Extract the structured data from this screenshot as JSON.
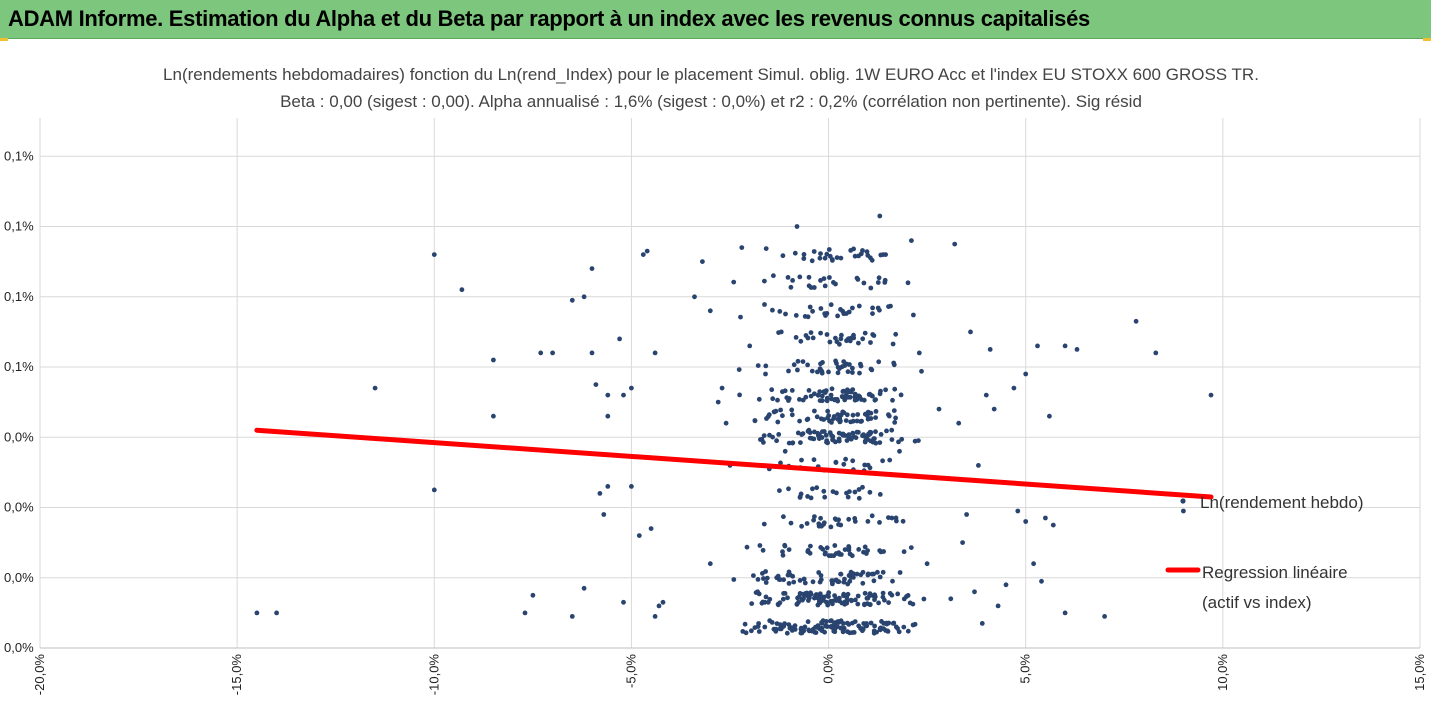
{
  "banner": {
    "title": "ADAM Informe. Estimation du Alpha et du Beta par rapport à un index avec les revenus connus capitalisés"
  },
  "colors": {
    "banner": "#7dc67d",
    "points": "#2a4470",
    "regression": "#ff0000",
    "grid": "#d9d9d9"
  },
  "chart_data": {
    "type": "scatter",
    "title": "Ln(rendements hebdomadaires) fonction du Ln(rend_Index) pour le placement Simul. oblig. 1W EURO Acc et l'index EU STOXX 600 GROSS TR.",
    "subtitle": "Beta : 0,00 (sigest : 0,00). Alpha annualisé : 1,6% (sigest : 0,0%) et r2 : 0,2% (corrélation non pertinente). Sig résid",
    "xlim": [
      -0.2,
      0.15
    ],
    "ylim": [
      0,
      8
    ],
    "x_ticks": [
      {
        "v": -0.2,
        "label": "-20,0%"
      },
      {
        "v": -0.15,
        "label": "-15,0%"
      },
      {
        "v": -0.1,
        "label": "-10,0%"
      },
      {
        "v": -0.05,
        "label": "-5,0%"
      },
      {
        "v": 0.0,
        "label": "0,0%"
      },
      {
        "v": 0.05,
        "label": "5,0%"
      },
      {
        "v": 0.1,
        "label": "10,0%"
      },
      {
        "v": 0.15,
        "label": "15,0%"
      }
    ],
    "y_ticks": [
      {
        "v": 0,
        "label": "0,0%"
      },
      {
        "v": 1,
        "label": "0,0%"
      },
      {
        "v": 2,
        "label": "0,0%"
      },
      {
        "v": 3,
        "label": "0,0%"
      },
      {
        "v": 4,
        "label": "0,1%"
      },
      {
        "v": 5,
        "label": "0,1%"
      },
      {
        "v": 6,
        "label": "0,1%"
      },
      {
        "v": 7,
        "label": "0,1%"
      }
    ],
    "grid": true,
    "legend_position": "right",
    "series": [
      {
        "name": "Ln(rendement hebdo)",
        "kind": "scatter",
        "points": [
          [
            -0.145,
            0.5
          ],
          [
            -0.14,
            0.5
          ],
          [
            -0.115,
            3.7
          ],
          [
            -0.1,
            5.6
          ],
          [
            -0.1,
            2.25
          ],
          [
            -0.093,
            5.1
          ],
          [
            -0.085,
            4.1
          ],
          [
            -0.085,
            3.3
          ],
          [
            -0.075,
            0.75
          ],
          [
            -0.077,
            0.5
          ],
          [
            -0.073,
            4.2
          ],
          [
            -0.07,
            4.2
          ],
          [
            -0.065,
            0.45
          ],
          [
            -0.062,
            0.85
          ],
          [
            -0.065,
            4.95
          ],
          [
            -0.062,
            5.0
          ],
          [
            -0.058,
            2.2
          ],
          [
            -0.056,
            2.3
          ],
          [
            -0.057,
            1.9
          ],
          [
            -0.06,
            4.2
          ],
          [
            -0.06,
            5.4
          ],
          [
            -0.059,
            3.75
          ],
          [
            -0.056,
            3.6
          ],
          [
            -0.056,
            3.3
          ],
          [
            -0.053,
            4.4
          ],
          [
            -0.052,
            3.6
          ],
          [
            -0.05,
            3.7
          ],
          [
            -0.05,
            2.3
          ],
          [
            -0.052,
            0.65
          ],
          [
            -0.047,
            5.6
          ],
          [
            -0.046,
            5.65
          ],
          [
            -0.044,
            4.2
          ],
          [
            -0.043,
            0.6
          ],
          [
            -0.042,
            0.65
          ],
          [
            -0.044,
            0.45
          ],
          [
            -0.048,
            1.6
          ],
          [
            -0.045,
            1.7
          ],
          [
            -0.034,
            5.0
          ],
          [
            -0.032,
            5.5
          ],
          [
            -0.03,
            4.8
          ],
          [
            -0.03,
            1.2
          ],
          [
            -0.028,
            3.5
          ],
          [
            -0.027,
            3.7
          ],
          [
            -0.026,
            3.2
          ],
          [
            -0.025,
            2.6
          ],
          [
            -0.022,
            5.7
          ],
          [
            -0.02,
            4.3
          ],
          [
            -0.018,
            0.8
          ],
          [
            -0.016,
            3.9
          ],
          [
            -0.014,
            5.3
          ],
          [
            -0.012,
            4.5
          ],
          [
            -0.011,
            2.8
          ],
          [
            -0.01,
            1.4
          ],
          [
            -0.008,
            6.0
          ],
          [
            -0.006,
            0.3
          ],
          [
            -0.005,
            3.1
          ],
          [
            0.013,
            6.15
          ],
          [
            0.014,
            0.35
          ],
          [
            0.016,
            3.1
          ],
          [
            0.018,
            2.8
          ],
          [
            0.021,
            5.8
          ],
          [
            0.023,
            4.2
          ],
          [
            0.025,
            1.2
          ],
          [
            0.028,
            3.4
          ],
          [
            0.031,
            0.7
          ],
          [
            0.032,
            5.75
          ],
          [
            0.033,
            3.2
          ],
          [
            0.034,
            1.5
          ],
          [
            0.035,
            1.9
          ],
          [
            0.036,
            4.5
          ],
          [
            0.037,
            0.8
          ],
          [
            0.038,
            2.6
          ],
          [
            0.039,
            0.35
          ],
          [
            0.04,
            3.6
          ],
          [
            0.041,
            4.25
          ],
          [
            0.042,
            3.4
          ],
          [
            0.043,
            0.6
          ],
          [
            0.045,
            0.9
          ],
          [
            0.047,
            3.7
          ],
          [
            0.048,
            1.95
          ],
          [
            0.05,
            1.8
          ],
          [
            0.05,
            3.9
          ],
          [
            0.052,
            1.2
          ],
          [
            0.053,
            4.3
          ],
          [
            0.054,
            0.95
          ],
          [
            0.055,
            1.85
          ],
          [
            0.056,
            3.3
          ],
          [
            0.057,
            1.75
          ],
          [
            0.06,
            0.5
          ],
          [
            0.06,
            4.3
          ],
          [
            0.063,
            4.25
          ],
          [
            0.07,
            0.45
          ],
          [
            0.078,
            4.65
          ],
          [
            0.083,
            4.2
          ],
          [
            0.097,
            3.6
          ],
          [
            0.09,
            1.95
          ]
        ]
      },
      {
        "name": "Regression linéaire",
        "name2": "(actif vs index)",
        "kind": "line",
        "x": [
          -0.145,
          0.097
        ],
        "y": [
          3.1,
          2.15
        ]
      }
    ]
  }
}
